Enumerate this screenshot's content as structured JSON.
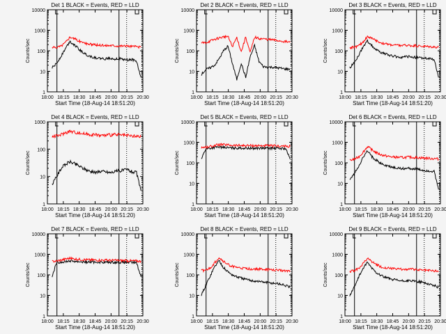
{
  "figure": {
    "y_axis_label": "Counts/sec",
    "x_axis_label": "Start Time (18-Aug-14 18:51:20)",
    "x_tick_labels": [
      "18:00",
      "18:15",
      "18:30",
      "18:45",
      "20:00",
      "20:15",
      "20:30"
    ],
    "y_tick_labels": [
      "1",
      "10",
      "100",
      "1000",
      "10000"
    ],
    "colors": {
      "events": "#000000",
      "lld": "#ff0000",
      "background": "#f4f4f4"
    }
  },
  "chart_data": [
    {
      "type": "line",
      "title": "Det 1 BLACK = Events, RED = LLD",
      "yscale": "log",
      "ylim": [
        1,
        10000
      ],
      "x": [
        0,
        0.05,
        0.1,
        0.15,
        0.2,
        0.25,
        0.3,
        0.35,
        0.4,
        0.45,
        0.5,
        0.55,
        0.6,
        0.65,
        0.7,
        0.75,
        0.8,
        0.85,
        0.9,
        0.95,
        1
      ],
      "series": [
        {
          "name": "Events",
          "color": "#000000",
          "values": [
            15,
            24,
            55,
            130,
            290,
            195,
            120,
            80,
            60,
            50,
            45,
            42,
            40,
            45,
            40,
            42,
            38,
            35,
            38,
            30,
            5
          ]
        },
        {
          "name": "LLD",
          "color": "#ff0000",
          "values": [
            140,
            150,
            170,
            260,
            480,
            390,
            300,
            250,
            220,
            200,
            190,
            185,
            180,
            185,
            180,
            175,
            175,
            170,
            165,
            160,
            150
          ]
        }
      ]
    },
    {
      "type": "line",
      "title": "Det 2 BLACK = Events, RED = LLD",
      "yscale": "log",
      "ylim": [
        1,
        10000
      ],
      "x": [
        0,
        0.05,
        0.1,
        0.15,
        0.2,
        0.25,
        0.3,
        0.35,
        0.4,
        0.45,
        0.5,
        0.55,
        0.6,
        0.65,
        0.7,
        0.75,
        0.8,
        0.85,
        0.9,
        0.95,
        1
      ],
      "series": [
        {
          "name": "Events",
          "color": "#000000",
          "values": [
            7,
            12,
            15,
            20,
            40,
            100,
            170,
            25,
            4,
            25,
            5,
            50,
            180,
            30,
            17,
            16,
            16,
            15,
            14,
            13,
            13
          ]
        },
        {
          "name": "LLD",
          "color": "#ff0000",
          "values": [
            240,
            250,
            300,
            360,
            420,
            480,
            500,
            160,
            450,
            90,
            480,
            80,
            460,
            400,
            380,
            360,
            340,
            320,
            300,
            280,
            260
          ]
        }
      ]
    },
    {
      "type": "line",
      "title": "Det 3 BLACK = Events, RED = LLD",
      "yscale": "log",
      "ylim": [
        1,
        10000
      ],
      "x": [
        0,
        0.05,
        0.1,
        0.15,
        0.2,
        0.25,
        0.3,
        0.35,
        0.4,
        0.45,
        0.5,
        0.55,
        0.6,
        0.65,
        0.7,
        0.75,
        0.8,
        0.85,
        0.9,
        0.95,
        1
      ],
      "series": [
        {
          "name": "Events",
          "color": "#000000",
          "values": [
            15,
            25,
            60,
            150,
            300,
            180,
            110,
            85,
            70,
            60,
            55,
            50,
            48,
            52,
            50,
            48,
            45,
            42,
            40,
            38,
            5
          ]
        },
        {
          "name": "LLD",
          "color": "#ff0000",
          "values": [
            140,
            150,
            175,
            270,
            500,
            400,
            300,
            250,
            220,
            200,
            190,
            185,
            180,
            185,
            180,
            175,
            170,
            165,
            160,
            155,
            150
          ]
        }
      ]
    },
    {
      "type": "line",
      "title": "Det 4 BLACK = Events, RED = LLD",
      "yscale": "log",
      "ylim": [
        1,
        1000
      ],
      "x": [
        0,
        0.05,
        0.1,
        0.15,
        0.2,
        0.25,
        0.3,
        0.35,
        0.4,
        0.45,
        0.5,
        0.55,
        0.6,
        0.65,
        0.7,
        0.75,
        0.8,
        0.85,
        0.9,
        0.95,
        1
      ],
      "series": [
        {
          "name": "Events",
          "color": "#000000",
          "values": [
            5,
            10,
            20,
            28,
            35,
            30,
            25,
            20,
            17,
            15,
            14,
            16,
            15,
            14,
            15,
            16,
            17,
            18,
            15,
            14,
            3
          ]
        },
        {
          "name": "LLD",
          "color": "#ff0000",
          "values": [
            290,
            300,
            340,
            400,
            450,
            420,
            390,
            370,
            350,
            340,
            330,
            320,
            320,
            330,
            340,
            330,
            320,
            310,
            300,
            290,
            280
          ]
        }
      ]
    },
    {
      "type": "line",
      "title": "Det 5 BLACK = Events, RED = LLD",
      "yscale": "log",
      "ylim": [
        1,
        10000
      ],
      "x": [
        0,
        0.05,
        0.1,
        0.15,
        0.2,
        0.25,
        0.3,
        0.35,
        0.4,
        0.45,
        0.5,
        0.55,
        0.6,
        0.65,
        0.7,
        0.75,
        0.8,
        0.85,
        0.9,
        0.95,
        1
      ],
      "series": [
        {
          "name": "Events",
          "color": "#000000",
          "values": [
            150,
            480,
            520,
            560,
            590,
            560,
            540,
            530,
            520,
            520,
            520,
            515,
            515,
            515,
            515,
            510,
            510,
            505,
            500,
            500,
            150
          ]
        },
        {
          "name": "LLD",
          "color": "#ff0000",
          "values": [
            560,
            580,
            620,
            700,
            780,
            760,
            730,
            710,
            700,
            700,
            690,
            690,
            690,
            680,
            680,
            680,
            670,
            660,
            650,
            640,
            630
          ]
        }
      ]
    },
    {
      "type": "line",
      "title": "Det 6 BLACK = Events, RED = LLD",
      "yscale": "log",
      "ylim": [
        1,
        10000
      ],
      "x": [
        0,
        0.05,
        0.1,
        0.15,
        0.2,
        0.25,
        0.3,
        0.35,
        0.4,
        0.45,
        0.5,
        0.55,
        0.6,
        0.65,
        0.7,
        0.75,
        0.8,
        0.85,
        0.9,
        0.95,
        1
      ],
      "series": [
        {
          "name": "Events",
          "color": "#000000",
          "values": [
            15,
            28,
            70,
            180,
            380,
            200,
            130,
            95,
            75,
            65,
            58,
            55,
            52,
            55,
            52,
            50,
            45,
            42,
            40,
            38,
            5
          ]
        },
        {
          "name": "LLD",
          "color": "#ff0000",
          "values": [
            130,
            150,
            190,
            330,
            620,
            430,
            310,
            250,
            220,
            200,
            190,
            185,
            180,
            190,
            185,
            180,
            175,
            170,
            165,
            160,
            155
          ]
        }
      ]
    },
    {
      "type": "line",
      "title": "Det 7 BLACK = Events, RED = LLD",
      "yscale": "log",
      "ylim": [
        1,
        10000
      ],
      "x": [
        0,
        0.05,
        0.1,
        0.15,
        0.2,
        0.25,
        0.3,
        0.35,
        0.4,
        0.45,
        0.5,
        0.55,
        0.6,
        0.65,
        0.7,
        0.75,
        0.8,
        0.85,
        0.9,
        0.95,
        1
      ],
      "series": [
        {
          "name": "Events",
          "color": "#000000",
          "values": [
            80,
            400,
            420,
            450,
            480,
            460,
            440,
            430,
            420,
            420,
            415,
            415,
            410,
            410,
            410,
            405,
            405,
            400,
            400,
            395,
            80
          ]
        },
        {
          "name": "LLD",
          "color": "#ff0000",
          "values": [
            450,
            470,
            520,
            590,
            640,
            600,
            570,
            550,
            540,
            530,
            520,
            520,
            515,
            510,
            505,
            500,
            495,
            490,
            480,
            470,
            460
          ]
        }
      ]
    },
    {
      "type": "line",
      "title": "Det 8 BLACK = Events, RED = LLD",
      "yscale": "log",
      "ylim": [
        1,
        10000
      ],
      "x": [
        0,
        0.05,
        0.1,
        0.15,
        0.2,
        0.25,
        0.3,
        0.35,
        0.4,
        0.45,
        0.5,
        0.55,
        0.6,
        0.65,
        0.7,
        0.75,
        0.8,
        0.85,
        0.9,
        0.95,
        1
      ],
      "series": [
        {
          "name": "Events",
          "color": "#000000",
          "values": [
            10,
            30,
            90,
            250,
            500,
            230,
            140,
            100,
            80,
            70,
            60,
            55,
            50,
            48,
            45,
            42,
            40,
            38,
            35,
            30,
            25
          ]
        },
        {
          "name": "LLD",
          "color": "#ff0000",
          "values": [
            160,
            170,
            210,
            380,
            700,
            450,
            320,
            260,
            230,
            210,
            200,
            195,
            190,
            190,
            185,
            180,
            175,
            170,
            165,
            160,
            160
          ]
        }
      ]
    },
    {
      "type": "line",
      "title": "Det 9 BLACK = Events, RED = LLD",
      "yscale": "log",
      "ylim": [
        1,
        10000
      ],
      "x": [
        0,
        0.05,
        0.1,
        0.15,
        0.2,
        0.25,
        0.3,
        0.35,
        0.4,
        0.45,
        0.5,
        0.55,
        0.6,
        0.65,
        0.7,
        0.75,
        0.8,
        0.85,
        0.9,
        0.95,
        1
      ],
      "series": [
        {
          "name": "Events",
          "color": "#000000",
          "values": [
            10,
            25,
            80,
            200,
            400,
            210,
            130,
            95,
            75,
            65,
            58,
            52,
            50,
            52,
            50,
            48,
            45,
            40,
            35,
            30,
            25
          ]
        },
        {
          "name": "LLD",
          "color": "#ff0000",
          "values": [
            150,
            160,
            200,
            360,
            620,
            430,
            310,
            250,
            220,
            205,
            195,
            190,
            185,
            190,
            185,
            180,
            175,
            170,
            165,
            160,
            155
          ]
        }
      ]
    }
  ]
}
